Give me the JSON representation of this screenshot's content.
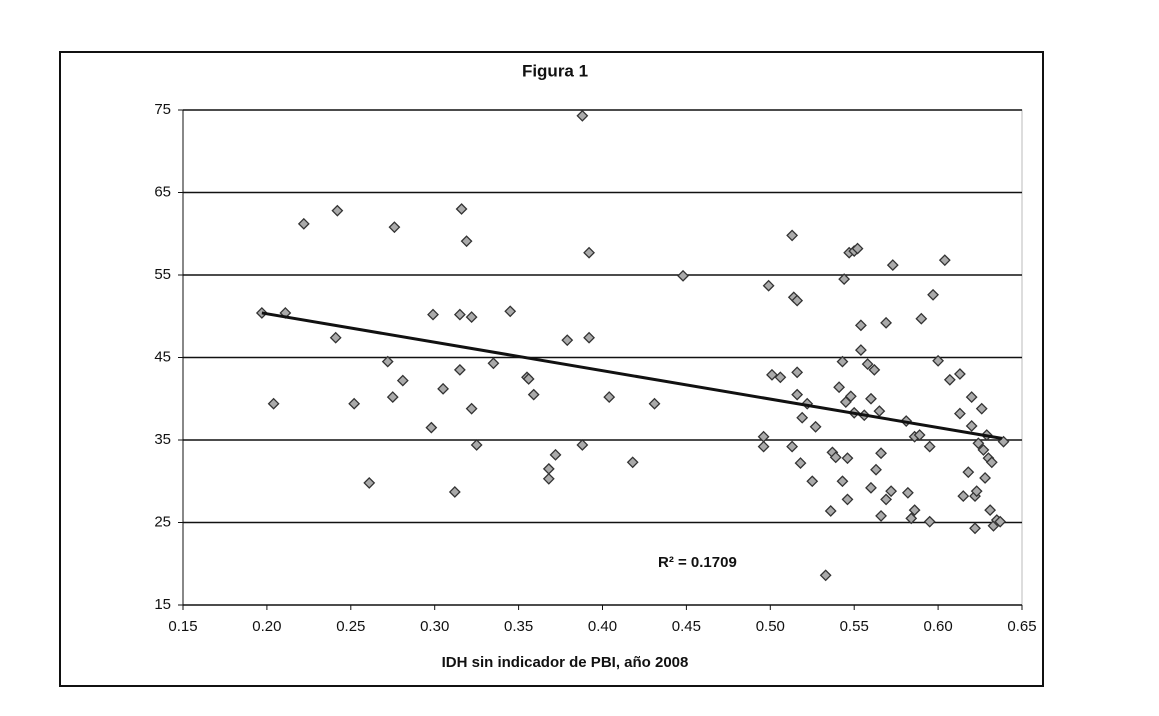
{
  "chart_data": {
    "type": "scatter",
    "title": "Figura 1",
    "x_label": "IDH sin indicador de PBI, año 2008",
    "annotation": "R² = 0.1709",
    "color": "#333333",
    "grid": true,
    "x": [
      0.197,
      0.204,
      0.211,
      0.222,
      0.241,
      0.242,
      0.252,
      0.261,
      0.272,
      0.275,
      0.276,
      0.281,
      0.298,
      0.299,
      0.305,
      0.312,
      0.315,
      0.315,
      0.316,
      0.319,
      0.322,
      0.322,
      0.325,
      0.335,
      0.345,
      0.355,
      0.356,
      0.359,
      0.368,
      0.368,
      0.372,
      0.379,
      0.388,
      0.388,
      0.392,
      0.392,
      0.404,
      0.418,
      0.431,
      0.448,
      0.496,
      0.496,
      0.499,
      0.501,
      0.506,
      0.513,
      0.513,
      0.514,
      0.516,
      0.516,
      0.516,
      0.518,
      0.519,
      0.522,
      0.525,
      0.527,
      0.533,
      0.536,
      0.537,
      0.539,
      0.541,
      0.543,
      0.544,
      0.543,
      0.545,
      0.546,
      0.546,
      0.547,
      0.548,
      0.55,
      0.55,
      0.552,
      0.554,
      0.554,
      0.556,
      0.558,
      0.56,
      0.56,
      0.562,
      0.563,
      0.565,
      0.566,
      0.566,
      0.569,
      0.569,
      0.572,
      0.573,
      0.581,
      0.582,
      0.584,
      0.586,
      0.586,
      0.589,
      0.59,
      0.595,
      0.595,
      0.597,
      0.6,
      0.604,
      0.607,
      0.613,
      0.613,
      0.615,
      0.618,
      0.62,
      0.62,
      0.622,
      0.622,
      0.623,
      0.624,
      0.626,
      0.627,
      0.628,
      0.629,
      0.63,
      0.631,
      0.632,
      0.633,
      0.635,
      0.637,
      0.639
    ],
    "values": [
      50.4,
      39.4,
      50.4,
      61.2,
      47.4,
      62.8,
      39.4,
      29.8,
      44.5,
      40.2,
      60.8,
      42.2,
      36.5,
      50.2,
      41.2,
      28.7,
      43.5,
      50.2,
      63.0,
      59.1,
      49.9,
      38.8,
      34.4,
      44.3,
      50.6,
      42.6,
      42.4,
      40.5,
      31.5,
      30.3,
      33.2,
      47.1,
      34.4,
      74.3,
      47.4,
      57.7,
      40.2,
      32.3,
      39.4,
      54.9,
      35.4,
      34.2,
      53.7,
      42.9,
      42.6,
      34.2,
      59.8,
      52.3,
      51.9,
      43.2,
      40.5,
      32.2,
      37.7,
      39.4,
      30.0,
      36.6,
      18.6,
      26.4,
      33.5,
      32.9,
      41.4,
      30.0,
      54.5,
      44.5,
      39.6,
      32.8,
      27.8,
      57.7,
      40.3,
      38.3,
      57.9,
      58.2,
      48.9,
      45.9,
      38.0,
      44.2,
      29.2,
      40.0,
      43.5,
      31.4,
      38.5,
      25.8,
      33.4,
      27.8,
      49.2,
      28.8,
      56.2,
      37.3,
      28.6,
      25.5,
      35.4,
      26.5,
      35.6,
      49.7,
      34.2,
      25.1,
      52.6,
      44.6,
      56.8,
      42.3,
      38.2,
      43.0,
      28.2,
      31.1,
      36.7,
      40.2,
      24.3,
      28.2,
      28.8,
      34.6,
      38.8,
      33.8,
      30.4,
      35.6,
      32.8,
      26.5,
      32.3,
      24.6,
      25.3,
      25.1,
      34.8
    ],
    "trendline": {
      "x": [
        0.197,
        0.638
      ],
      "values": [
        50.4,
        35.2
      ]
    },
    "xlim": [
      0.15,
      0.65
    ],
    "xticks": [
      0.15,
      {
        "value": 0.2,
        "label": "0.20"
      },
      0.25,
      {
        "value": 0.3,
        "label": "0.30"
      },
      0.35,
      {
        "value": 0.4,
        "label": "0.40"
      },
      0.45,
      {
        "value": 0.5,
        "label": "0.50"
      },
      0.55,
      {
        "value": 0.6,
        "label": "0.60"
      },
      0.65
    ],
    "ylim": [
      15,
      75
    ],
    "yticks": [
      15,
      25,
      35,
      45,
      55,
      65,
      75
    ]
  }
}
